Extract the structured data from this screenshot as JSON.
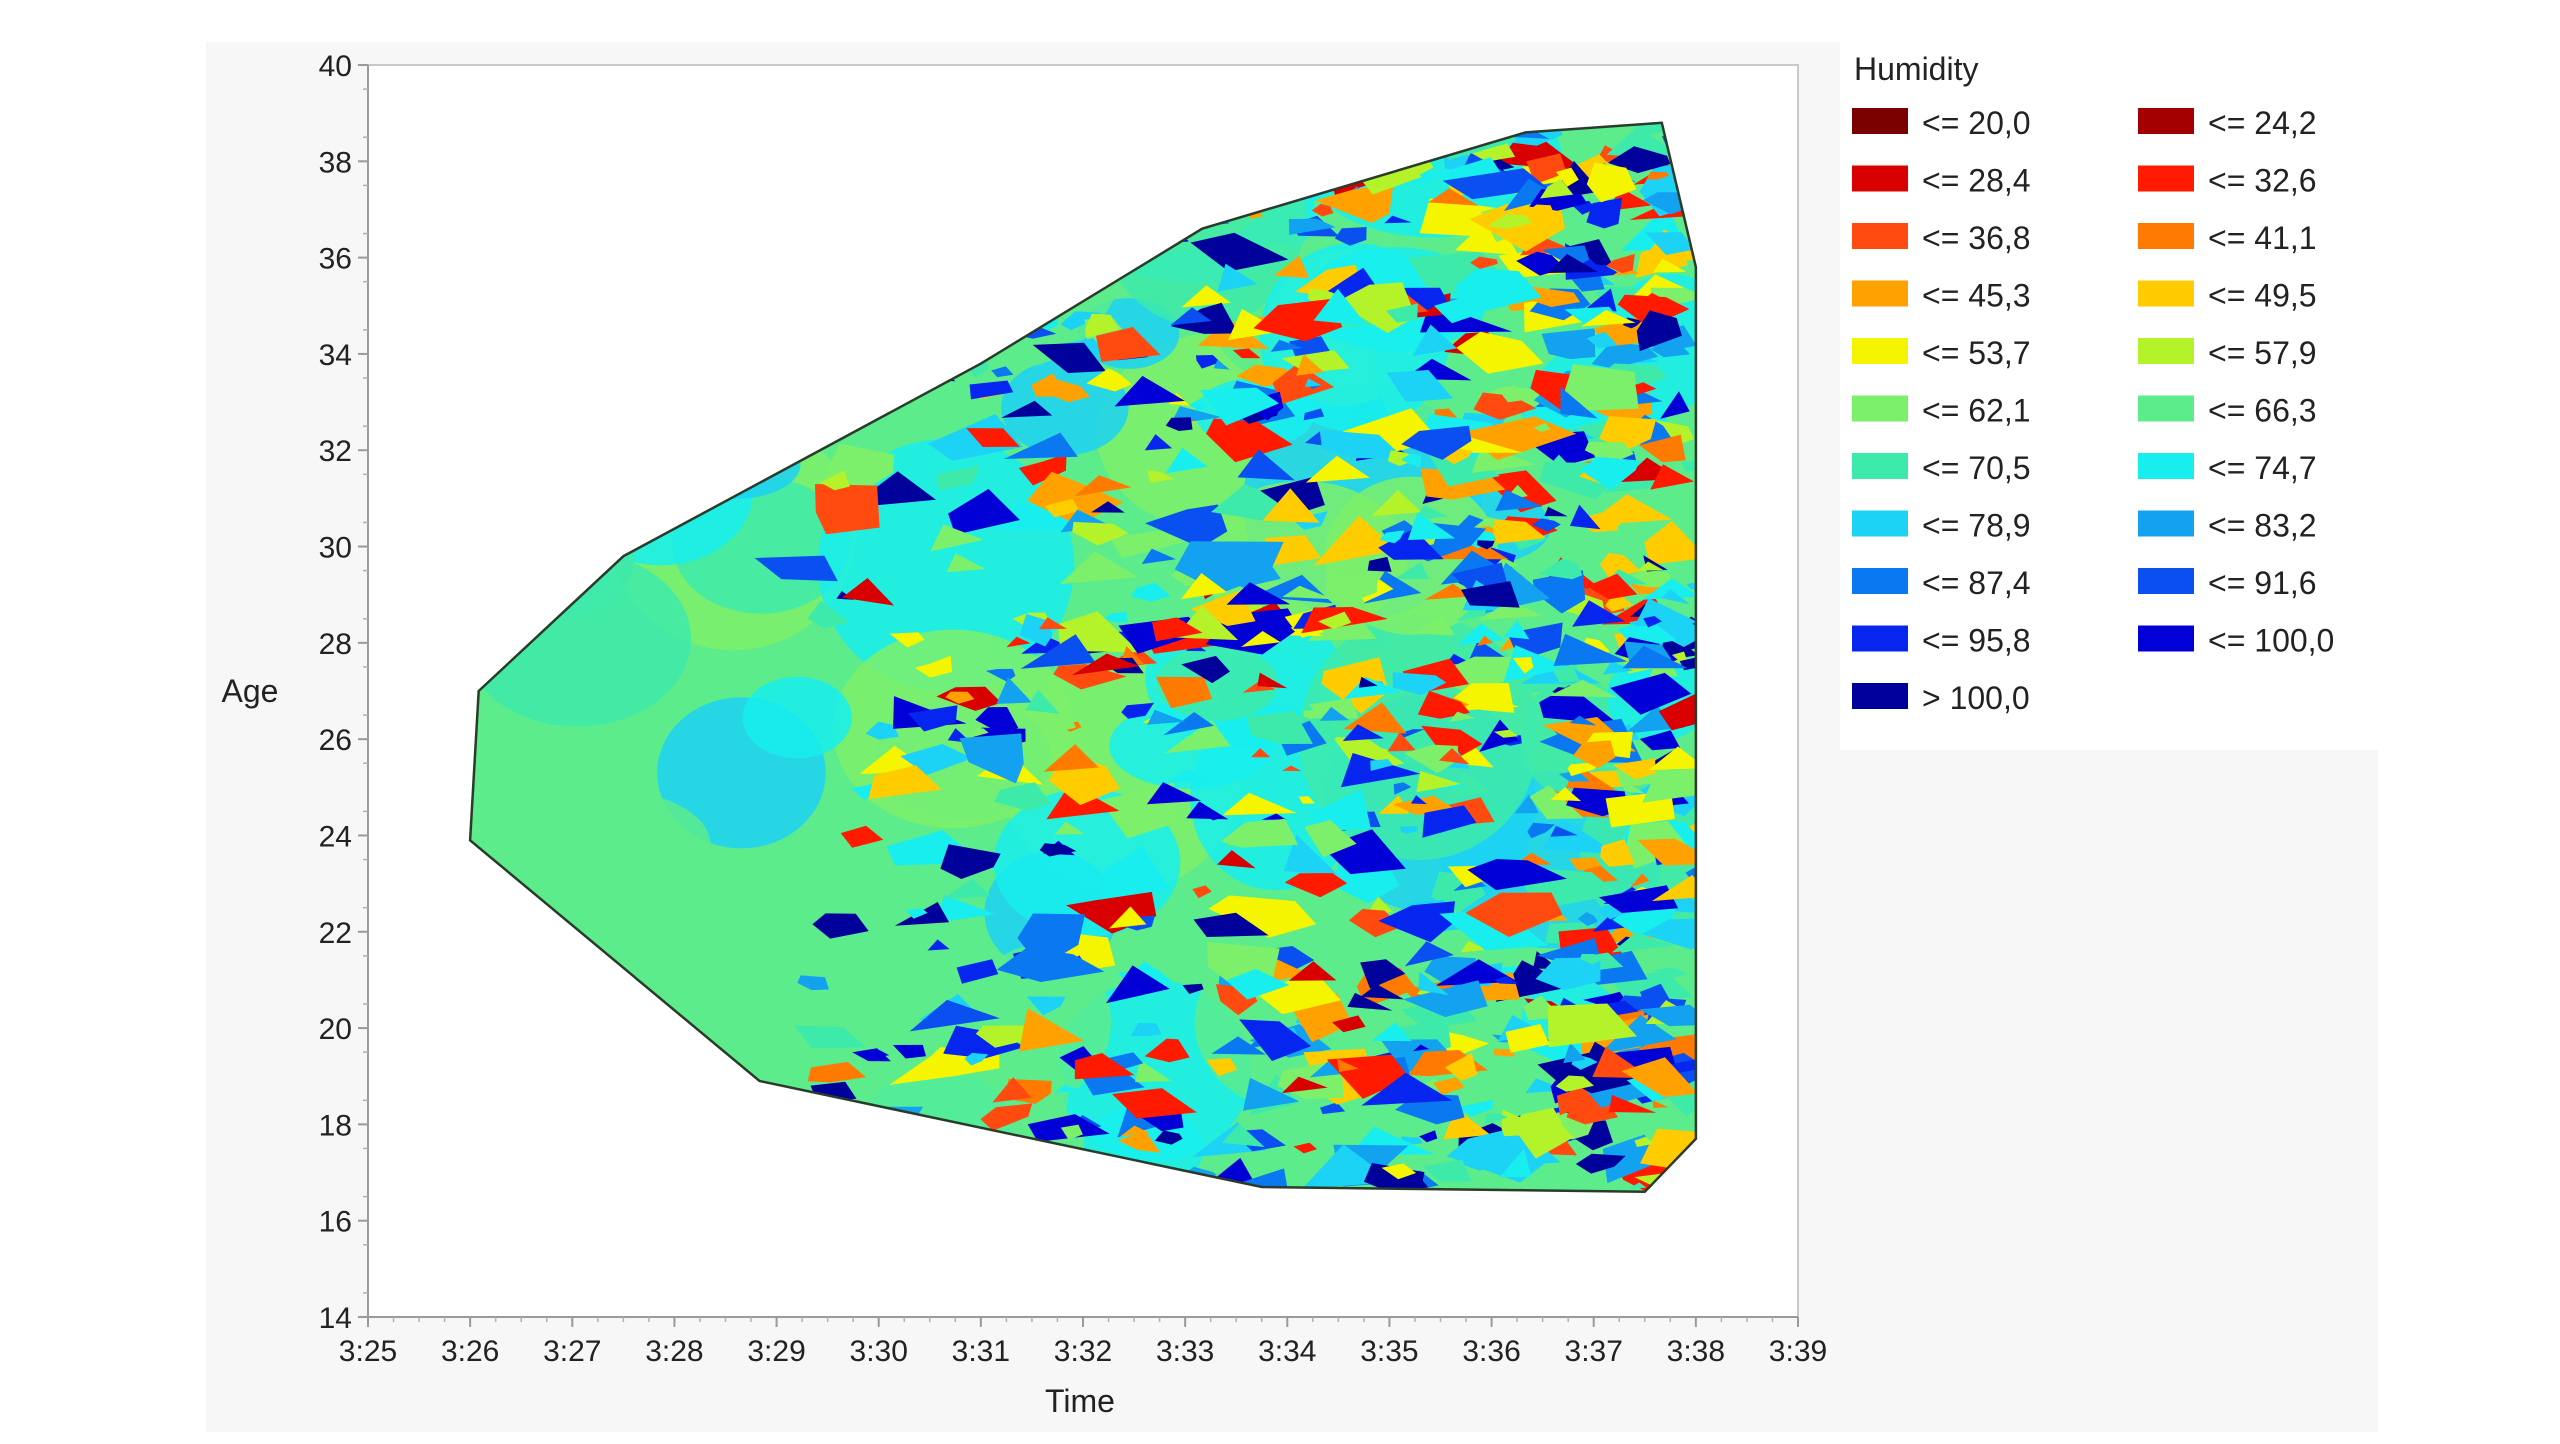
{
  "chart_data": {
    "type": "heatmap",
    "subtype": "contour",
    "xlabel": "Time",
    "ylabel": "Age",
    "xlim": [
      "3:25",
      "3:39"
    ],
    "ylim": [
      14,
      40
    ],
    "x_ticks": [
      "3:25",
      "3:26",
      "3:27",
      "3:28",
      "3:29",
      "3:30",
      "3:31",
      "3:32",
      "3:33",
      "3:34",
      "3:35",
      "3:36",
      "3:37",
      "3:38",
      "3:39"
    ],
    "y_ticks": [
      14,
      16,
      18,
      20,
      22,
      24,
      26,
      28,
      30,
      32,
      34,
      36,
      38,
      40
    ],
    "grid": false,
    "legend": {
      "title": "Humidity",
      "placement": "right",
      "items": [
        {
          "label": "<= 20,0",
          "color": "#7b0000"
        },
        {
          "label": "<= 24,2",
          "color": "#a40000"
        },
        {
          "label": "<= 28,4",
          "color": "#d80000"
        },
        {
          "label": "<= 32,6",
          "color": "#ff1a00"
        },
        {
          "label": "<= 36,8",
          "color": "#ff4a10"
        },
        {
          "label": "<= 41,1",
          "color": "#ff7a00"
        },
        {
          "label": "<= 45,3",
          "color": "#ffa100"
        },
        {
          "label": "<= 49,5",
          "color": "#ffcc00"
        },
        {
          "label": "<= 53,7",
          "color": "#f5f500"
        },
        {
          "label": "<= 57,9",
          "color": "#b4f22a"
        },
        {
          "label": "<= 62,1",
          "color": "#7cf06a"
        },
        {
          "label": "<= 66,3",
          "color": "#5cec8c"
        },
        {
          "label": "<= 70,5",
          "color": "#3eeaaa"
        },
        {
          "label": "<= 74,7",
          "color": "#18eeee"
        },
        {
          "label": "<= 78,9",
          "color": "#1cd2f5"
        },
        {
          "label": "<= 83,2",
          "color": "#12a2f0"
        },
        {
          "label": "<= 87,4",
          "color": "#0a78f0"
        },
        {
          "label": "<= 91,6",
          "color": "#0a50f0"
        },
        {
          "label": "<= 95,8",
          "color": "#0626f0"
        },
        {
          "label": "<= 100,0",
          "color": "#0000d6"
        },
        {
          "label": "> 100,0",
          "color": "#00009a"
        }
      ]
    },
    "boundary": [
      [
        "3:26:05",
        27.0
      ],
      [
        "3:27:30",
        29.8
      ],
      [
        "3:31:00",
        33.8
      ],
      [
        "3:33:10",
        36.6
      ],
      [
        "3:36:20",
        38.6
      ],
      [
        "3:37:40",
        38.8
      ],
      [
        "3:38:00",
        35.8
      ],
      [
        "3:38:00",
        17.7
      ],
      [
        "3:37:30",
        16.6
      ],
      [
        "3:33:45",
        16.7
      ],
      [
        "3:28:50",
        18.9
      ],
      [
        "3:26:00",
        23.9
      ]
    ]
  }
}
